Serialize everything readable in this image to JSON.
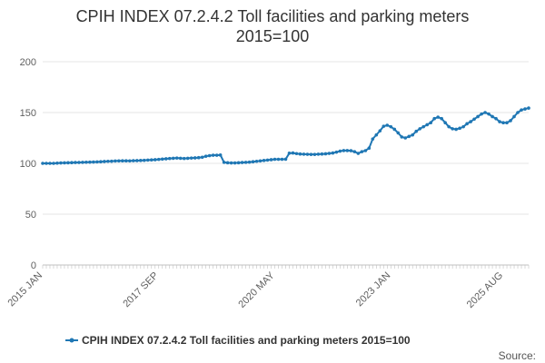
{
  "source_label": "Source:",
  "chart_data": {
    "type": "line",
    "title": "CPIH INDEX 07.2.4.2 Toll facilities and parking meters",
    "subtitle": "2015=100",
    "xlabel": "",
    "ylabel": "",
    "ylim": [
      0,
      200
    ],
    "yticks": [
      0,
      50,
      100,
      150,
      200
    ],
    "xticks": [
      "2015 JAN",
      "2017 SEP",
      "2020 MAY",
      "2023 JAN",
      "2025 AUG"
    ],
    "grid": true,
    "legend_position": "bottom",
    "colors": {
      "series": "#1f77b4",
      "grid": "#e6e6e6",
      "axis": "#c0c0c0"
    },
    "x_start": "2015-01",
    "series": [
      {
        "name": "CPIH INDEX 07.2.4.2 Toll facilities and parking meters 2015=100",
        "values": [
          100,
          100,
          100,
          100,
          100.2,
          100.4,
          100.5,
          100.6,
          100.7,
          100.8,
          100.9,
          101,
          101.1,
          101.2,
          101.3,
          101.4,
          101.6,
          101.8,
          102,
          102.1,
          102.3,
          102.4,
          102.5,
          102.5,
          102.4,
          102.6,
          102.7,
          102.8,
          103,
          103.2,
          103.4,
          103.6,
          103.9,
          104.2,
          104.5,
          104.8,
          105,
          105.2,
          105,
          104.8,
          105,
          105.2,
          105.4,
          105.6,
          106,
          107,
          107.6,
          108,
          108,
          108.2,
          101,
          100.6,
          100.4,
          100.4,
          100.6,
          100.8,
          101,
          101.2,
          101.6,
          102,
          102.4,
          102.8,
          103.2,
          103.6,
          104,
          104,
          104,
          104.1,
          110,
          110.2,
          109.6,
          109.2,
          109,
          108.9,
          108.8,
          108.8,
          109,
          109.2,
          109.4,
          109.8,
          110.2,
          111,
          112,
          112.6,
          112.6,
          112.4,
          111.5,
          109.8,
          111.5,
          112.5,
          115,
          124,
          128,
          132,
          136.5,
          137.5,
          136,
          133.5,
          130,
          126,
          125,
          126.5,
          128,
          131.5,
          134,
          136,
          138,
          140,
          144,
          145.5,
          144,
          140,
          136,
          134,
          133.5,
          134.5,
          136,
          139,
          141,
          143.5,
          146,
          148.5,
          150,
          148.5,
          146,
          144,
          141,
          140,
          140,
          142,
          146,
          150,
          152.5,
          153.5,
          154.4
        ]
      }
    ]
  }
}
